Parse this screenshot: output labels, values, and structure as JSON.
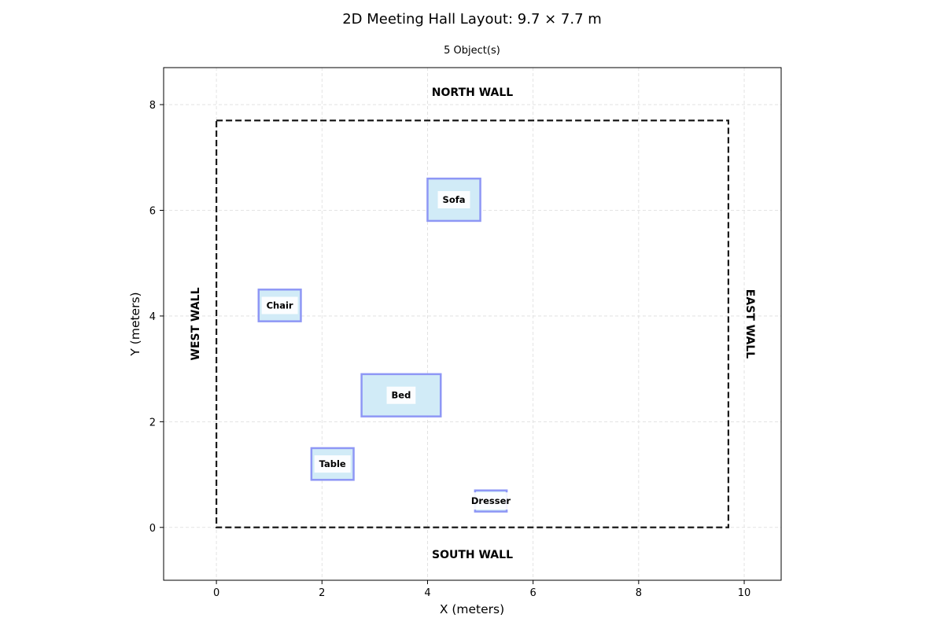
{
  "chart_data": {
    "type": "scatter",
    "title": "2D Meeting Hall Layout: 9.7 × 7.7 m",
    "subtitle": "5 Object(s)",
    "xlabel": "X (meters)",
    "ylabel": "Y (meters)",
    "xlim": [
      -1.0,
      10.7
    ],
    "ylim": [
      -1.0,
      8.7
    ],
    "xticks": [
      0,
      2,
      4,
      6,
      8,
      10
    ],
    "yticks": [
      0,
      2,
      4,
      6,
      8
    ],
    "grid": true,
    "room": {
      "width": 9.7,
      "depth": 7.7
    },
    "walls": {
      "north": "NORTH WALL",
      "south": "SOUTH WALL",
      "west": "WEST WALL",
      "east": "EAST WALL"
    },
    "objects": [
      {
        "name": "Sofa",
        "x": 4.0,
        "y": 5.8,
        "w": 1.0,
        "h": 0.8
      },
      {
        "name": "Chair",
        "x": 0.8,
        "y": 3.9,
        "w": 0.8,
        "h": 0.6
      },
      {
        "name": "Bed",
        "x": 2.75,
        "y": 2.1,
        "w": 1.5,
        "h": 0.8
      },
      {
        "name": "Table",
        "x": 1.8,
        "y": 0.9,
        "w": 0.8,
        "h": 0.6
      },
      {
        "name": "Dresser",
        "x": 4.9,
        "y": 0.3,
        "w": 0.6,
        "h": 0.4
      }
    ],
    "colors": {
      "object_fill": "#d1ebf7",
      "object_edge": "#8e97f5",
      "room_outline": "#1a1a1a",
      "grid": "#dcdcdc"
    }
  }
}
